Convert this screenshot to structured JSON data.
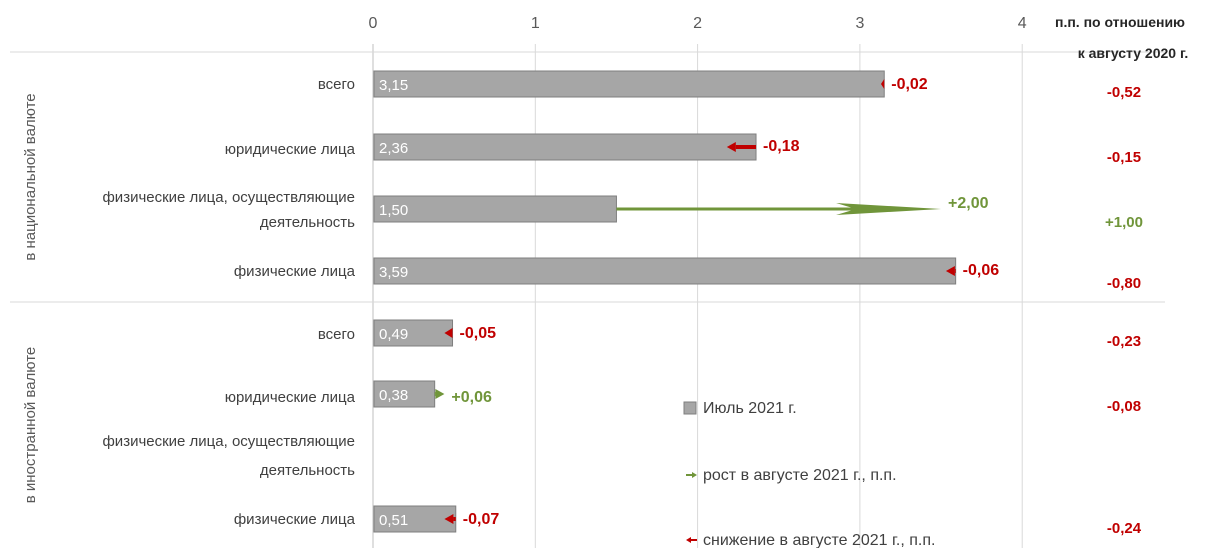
{
  "chart_data": {
    "type": "bar",
    "orientation": "horizontal",
    "xlim": [
      0,
      4
    ],
    "x_ticks": [
      "0",
      "1",
      "2",
      "3",
      "4"
    ],
    "grid": true,
    "groups": [
      {
        "label": "в национальной валюте",
        "rows": [
          {
            "category": "всего",
            "value": 3.15,
            "value_label": "3,15",
            "change": -0.02,
            "change_label": "-0,02",
            "yoy_label": "-0,52"
          },
          {
            "category": "юридические лица",
            "value": 2.36,
            "value_label": "2,36",
            "change": -0.18,
            "change_label": "-0,18",
            "yoy_label": "-0,15"
          },
          {
            "category": "физические лица, осуществляющие деятельность",
            "category_lines": [
              "физические лица, осуществляющие",
              "деятельность"
            ],
            "value": 1.5,
            "value_label": "1,50",
            "change": 2.0,
            "change_label": "+2,00",
            "yoy_label": "+1,00"
          },
          {
            "category": "физические лица",
            "value": 3.59,
            "value_label": "3,59",
            "change": -0.06,
            "change_label": "-0,06",
            "yoy_label": "-0,80"
          }
        ]
      },
      {
        "label": "в иностранной валюте",
        "rows": [
          {
            "category": "всего",
            "value": 0.49,
            "value_label": "0,49",
            "change": -0.05,
            "change_label": "-0,05",
            "yoy_label": "-0,23"
          },
          {
            "category": "юридические лица",
            "value": 0.38,
            "value_label": "0,38",
            "change": 0.06,
            "change_label": "+0,06",
            "yoy_label": "-0,08"
          },
          {
            "category": "физические лица, осуществляющие деятельность",
            "category_lines": [
              "физические лица, осуществляющие",
              "деятельность"
            ],
            "value": null,
            "value_label": "",
            "change": null,
            "change_label": "",
            "yoy_label": ""
          },
          {
            "category": "физические лица",
            "value": 0.51,
            "value_label": "0,51",
            "change": -0.07,
            "change_label": "-0,07",
            "yoy_label": "-0,24"
          }
        ]
      }
    ],
    "right_column_header": [
      "п.п. по отношению",
      "к августу 2020 г."
    ],
    "legend": [
      {
        "label": "Июль 2021 г.",
        "icon": "gray-square"
      },
      {
        "label": "рост в августе 2021 г., п.п.",
        "icon": "green-arrow"
      },
      {
        "label": "снижение в августе 2021 г., п.п.",
        "icon": "red-arrow"
      }
    ],
    "colors": {
      "bar": "#a6a6a6",
      "bar_border": "#7f7f7f",
      "increase": "#70953a",
      "decrease": "#c00000",
      "grid": "#d9d9d9",
      "text": "#404040"
    }
  }
}
